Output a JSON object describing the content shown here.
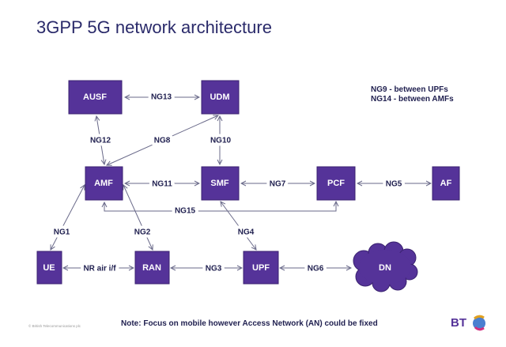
{
  "title": "3GPP 5G network architecture",
  "colors": {
    "node": "#553399",
    "text": "#1f1f4f",
    "line": "#6a6a8a"
  },
  "nodes": {
    "ausf": "AUSF",
    "udm": "UDM",
    "amf": "AMF",
    "smf": "SMF",
    "pcf": "PCF",
    "af": "AF",
    "ue": "UE",
    "ran": "RAN",
    "upf": "UPF",
    "dn": "DN"
  },
  "links": {
    "ng13": "NG13",
    "ng12": "NG12",
    "ng8": "NG8",
    "ng10": "NG10",
    "ng11": "NG11",
    "ng7": "NG7",
    "ng5": "NG5",
    "ng15": "NG15",
    "ng1": "NG1",
    "ng2": "NG2",
    "ng4": "NG4",
    "nr": "NR air i/f",
    "ng3": "NG3",
    "ng6": "NG6"
  },
  "legend": [
    "NG9 - between UPFs",
    "NG14 - between AMFs"
  ],
  "footer": {
    "note": "Note: Focus on mobile however Access Network (AN) could be fixed",
    "copyright": "© British Telecommunications plc",
    "logo": "BT"
  }
}
